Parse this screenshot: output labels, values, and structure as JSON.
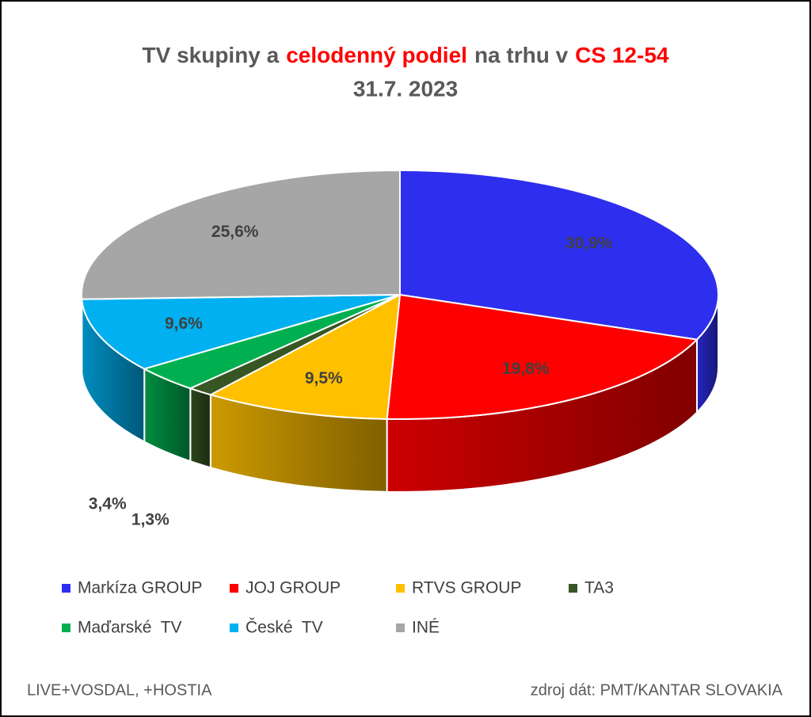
{
  "chart_data": {
    "type": "pie3d",
    "title_parts": [
      {
        "text": "TV skupiny a",
        "color": "#595959"
      },
      {
        "text": "celodenný podiel",
        "color": "#ff0000"
      },
      {
        "text": "na trhu v",
        "color": "#595959"
      },
      {
        "text": "CS 12-54",
        "color": "#ff0000"
      }
    ],
    "subtitle": "31.7. 2023",
    "categories": [
      "Markíza GROUP",
      "JOJ GROUP",
      "RTVS GROUP",
      "TA3",
      "Maďarské  TV",
      "České  TV",
      "INÉ"
    ],
    "values": [
      30.9,
      19.8,
      9.5,
      1.3,
      3.4,
      9.6,
      25.6
    ],
    "value_labels": [
      "30,9%",
      "19,8%",
      "9,5%",
      "1,3%",
      "3,4%",
      "9,6%",
      "25,6%"
    ],
    "colors": [
      "#2e2eee",
      "#ff0000",
      "#ffc000",
      "#375623",
      "#00b050",
      "#00b0f0",
      "#a6a6a6"
    ],
    "notes": [
      "LIVE+VOSDAL, +HOSTIA",
      "zdroj dát: PMT/KANTAR SLOVAKIA"
    ]
  }
}
